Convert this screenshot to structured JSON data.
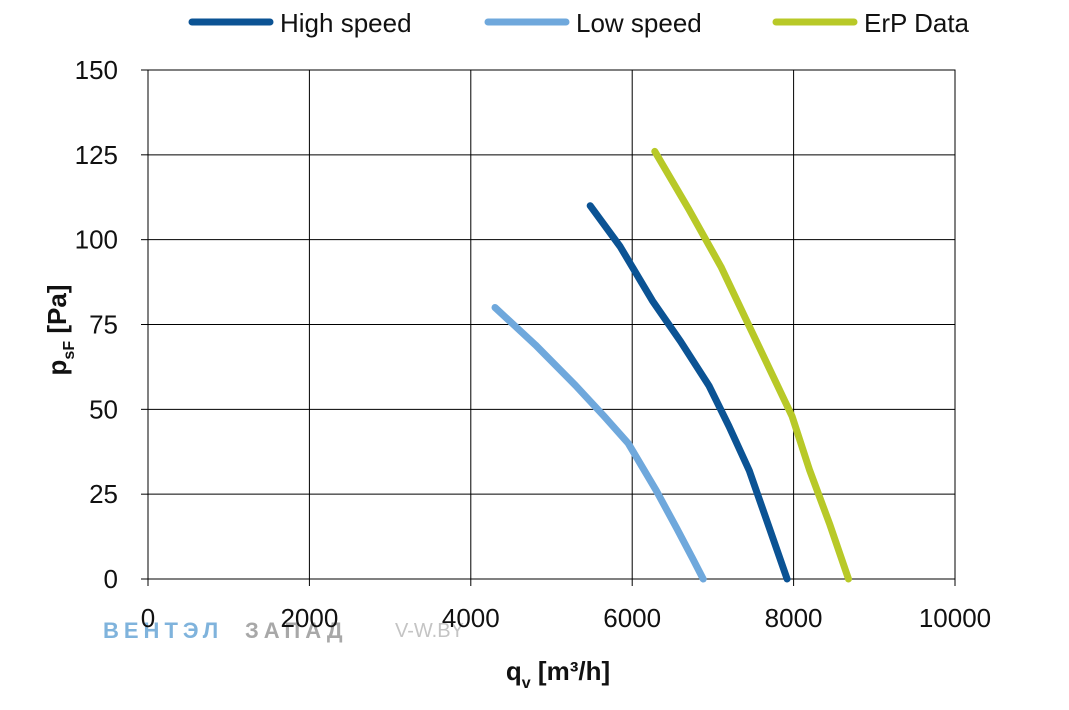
{
  "chart_data": {
    "type": "line",
    "title": "",
    "xlabel": "q",
    "xlabel_sub": "v",
    "xlabel_unit": " [m³/h]",
    "ylabel": "p",
    "ylabel_sub": "sF",
    "ylabel_unit": " [Pa]",
    "xlim": [
      0,
      10000
    ],
    "ylim": [
      0,
      150
    ],
    "xticks": [
      0,
      2000,
      4000,
      6000,
      8000,
      10000
    ],
    "yticks": [
      0,
      25,
      50,
      75,
      100,
      125,
      150
    ],
    "grid": true,
    "legend_position": "top",
    "series": [
      {
        "name": "High speed",
        "color": "#0b5394",
        "x": [
          5480,
          5850,
          6250,
          6600,
          6950,
          7200,
          7450,
          7700,
          7920
        ],
        "y": [
          110,
          98,
          82,
          70,
          57,
          45,
          32,
          15,
          0
        ]
      },
      {
        "name": "Low speed",
        "color": "#6fa8dc",
        "x": [
          4300,
          4800,
          5300,
          5650,
          5950,
          6300,
          6550,
          6750,
          6880
        ],
        "y": [
          80,
          69,
          57,
          48,
          40,
          26,
          15,
          6,
          0
        ]
      },
      {
        "name": "ErP Data",
        "color": "#b8c928",
        "x": [
          6280,
          6700,
          7100,
          7400,
          7700,
          7980,
          8200,
          8450,
          8680
        ],
        "y": [
          126,
          109,
          92,
          77,
          62,
          48,
          32,
          16,
          0
        ]
      }
    ]
  },
  "watermark": {
    "part1": "ВЕНТЭЛ",
    "part2": "ЗАПАД",
    "url": "V-W.BY"
  }
}
